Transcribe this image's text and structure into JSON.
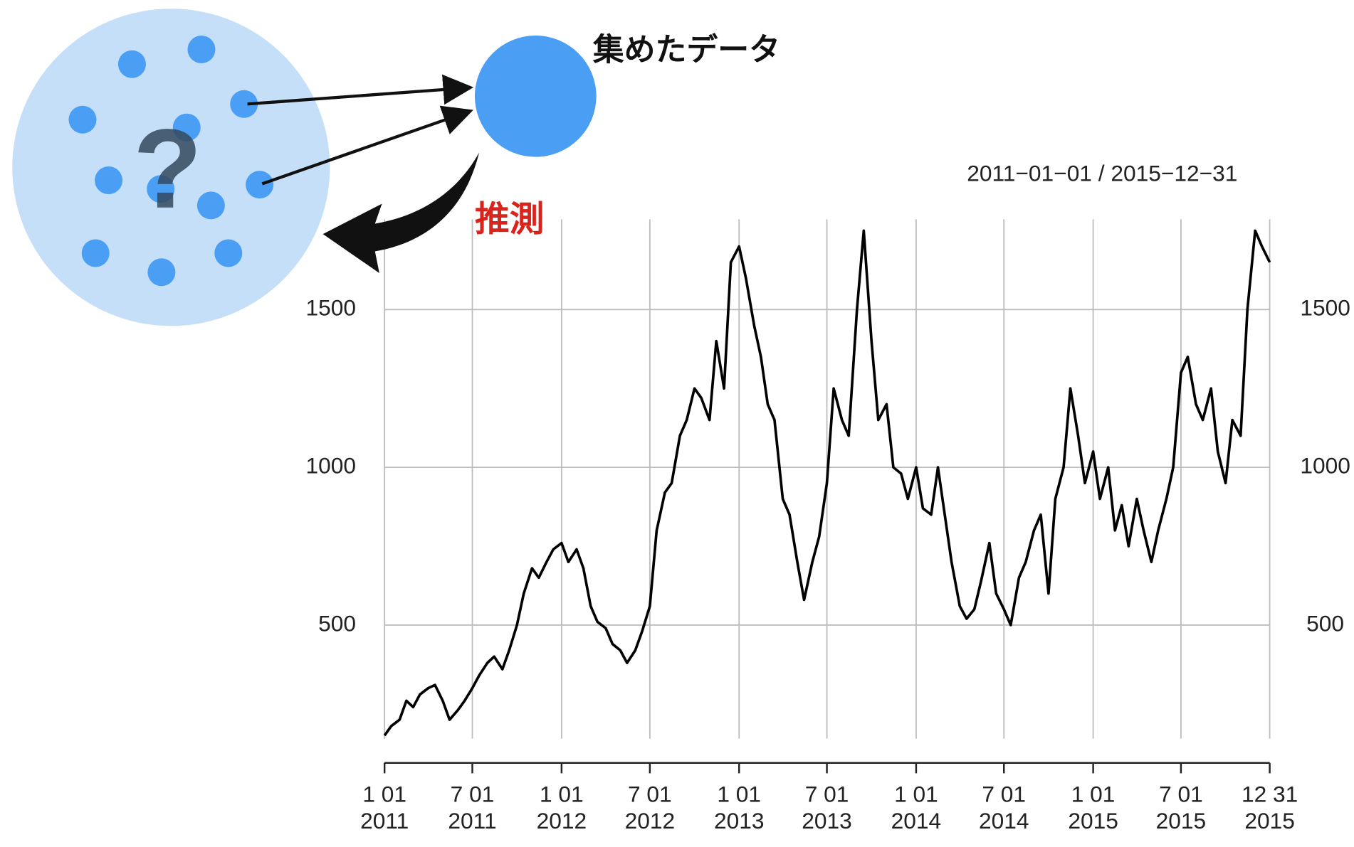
{
  "diagram": {
    "data_label": "集めたデータ",
    "inference_label": "推測",
    "unknown_mark": "?"
  },
  "chart_data": {
    "type": "line",
    "title": "2011−01−01 / 2015−12−31",
    "color": "#000000",
    "grid": true,
    "xlim": [
      "2011-01-01",
      "2015-12-31"
    ],
    "xticks": [
      {
        "value": "2011-01-01",
        "label": [
          "1 01",
          "2011"
        ]
      },
      {
        "value": "2011-07-01",
        "label": [
          "7 01",
          "2011"
        ]
      },
      {
        "value": "2012-01-01",
        "label": [
          "1 01",
          "2012"
        ]
      },
      {
        "value": "2012-07-01",
        "label": [
          "7 01",
          "2012"
        ]
      },
      {
        "value": "2013-01-01",
        "label": [
          "1 01",
          "2013"
        ]
      },
      {
        "value": "2013-07-01",
        "label": [
          "7 01",
          "2013"
        ]
      },
      {
        "value": "2014-01-01",
        "label": [
          "1 01",
          "2014"
        ]
      },
      {
        "value": "2014-07-01",
        "label": [
          "7 01",
          "2014"
        ]
      },
      {
        "value": "2015-01-01",
        "label": [
          "1 01",
          "2015"
        ]
      },
      {
        "value": "2015-07-01",
        "label": [
          "7 01",
          "2015"
        ]
      },
      {
        "value": "2015-12-31",
        "label": [
          "12 31",
          "2015"
        ]
      }
    ],
    "ylim": [
      140,
      1786
    ],
    "yticks": [
      500,
      1000,
      1500
    ],
    "x": [
      "2011-01-01",
      "2011-01-15",
      "2011-02-01",
      "2011-02-15",
      "2011-03-01",
      "2011-03-15",
      "2011-04-01",
      "2011-04-15",
      "2011-05-01",
      "2011-05-15",
      "2011-06-01",
      "2011-06-15",
      "2011-07-01",
      "2011-07-15",
      "2011-08-01",
      "2011-08-15",
      "2011-09-01",
      "2011-09-15",
      "2011-10-01",
      "2011-10-15",
      "2011-11-01",
      "2011-11-15",
      "2011-12-01",
      "2011-12-15",
      "2012-01-01",
      "2012-01-15",
      "2012-02-01",
      "2012-02-15",
      "2012-03-01",
      "2012-03-15",
      "2012-04-01",
      "2012-04-15",
      "2012-05-01",
      "2012-05-15",
      "2012-06-01",
      "2012-06-15",
      "2012-07-01",
      "2012-07-15",
      "2012-08-01",
      "2012-08-15",
      "2012-09-01",
      "2012-09-15",
      "2012-10-01",
      "2012-10-15",
      "2012-11-01",
      "2012-11-15",
      "2012-12-01",
      "2012-12-15",
      "2013-01-01",
      "2013-01-15",
      "2013-02-01",
      "2013-02-15",
      "2013-03-01",
      "2013-03-15",
      "2013-04-01",
      "2013-04-15",
      "2013-05-01",
      "2013-05-15",
      "2013-06-01",
      "2013-06-15",
      "2013-07-01",
      "2013-07-15",
      "2013-08-01",
      "2013-08-15",
      "2013-09-01",
      "2013-09-15",
      "2013-10-01",
      "2013-10-15",
      "2013-11-01",
      "2013-11-15",
      "2013-12-01",
      "2013-12-15",
      "2014-01-01",
      "2014-01-15",
      "2014-02-01",
      "2014-02-15",
      "2014-03-01",
      "2014-03-15",
      "2014-04-01",
      "2014-04-15",
      "2014-05-01",
      "2014-05-15",
      "2014-06-01",
      "2014-06-15",
      "2014-07-01",
      "2014-07-15",
      "2014-08-01",
      "2014-08-15",
      "2014-09-01",
      "2014-09-15",
      "2014-10-01",
      "2014-10-15",
      "2014-11-01",
      "2014-11-15",
      "2014-12-01",
      "2014-12-15",
      "2015-01-01",
      "2015-01-15",
      "2015-02-01",
      "2015-02-15",
      "2015-03-01",
      "2015-03-15",
      "2015-04-01",
      "2015-04-15",
      "2015-05-01",
      "2015-05-15",
      "2015-06-01",
      "2015-06-15",
      "2015-07-01",
      "2015-07-15",
      "2015-08-01",
      "2015-08-15",
      "2015-09-01",
      "2015-09-15",
      "2015-10-01",
      "2015-10-15",
      "2015-11-01",
      "2015-11-15",
      "2015-12-01",
      "2015-12-15",
      "2015-12-31"
    ],
    "values": [
      150,
      180,
      200,
      260,
      240,
      280,
      300,
      310,
      260,
      200,
      230,
      260,
      300,
      340,
      380,
      400,
      360,
      420,
      500,
      600,
      680,
      650,
      700,
      740,
      760,
      700,
      740,
      680,
      560,
      510,
      490,
      440,
      420,
      380,
      420,
      480,
      560,
      800,
      920,
      950,
      1100,
      1150,
      1250,
      1220,
      1150,
      1400,
      1250,
      1650,
      1700,
      1600,
      1450,
      1350,
      1200,
      1150,
      900,
      850,
      700,
      580,
      700,
      780,
      950,
      1250,
      1150,
      1100,
      1500,
      1750,
      1400,
      1150,
      1200,
      1000,
      980,
      900,
      1000,
      870,
      850,
      1000,
      850,
      700,
      560,
      520,
      550,
      640,
      760,
      600,
      550,
      500,
      650,
      700,
      800,
      850,
      600,
      900,
      1000,
      1250,
      1100,
      950,
      1050,
      900,
      1000,
      800,
      880,
      750,
      900,
      800,
      700,
      800,
      900,
      1000,
      1300,
      1350,
      1200,
      1150,
      1250,
      1050,
      950,
      1150,
      1100,
      1500,
      1750,
      1700,
      1650
    ]
  }
}
